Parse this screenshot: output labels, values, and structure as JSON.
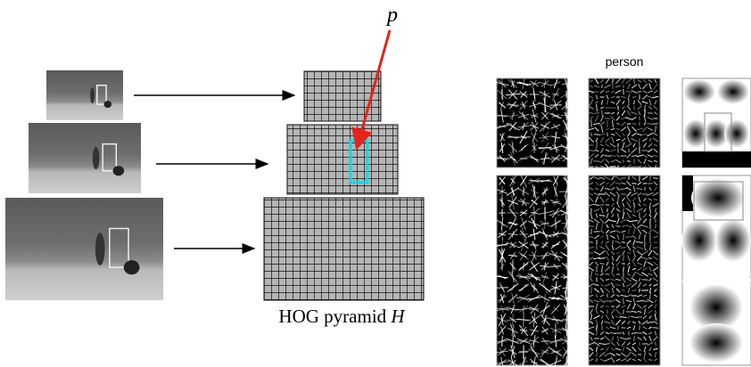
{
  "figure": {
    "point_label": "p",
    "class_label": "person",
    "pyramid_label": "HOG pyramid",
    "pyramid_symbol": "H"
  }
}
